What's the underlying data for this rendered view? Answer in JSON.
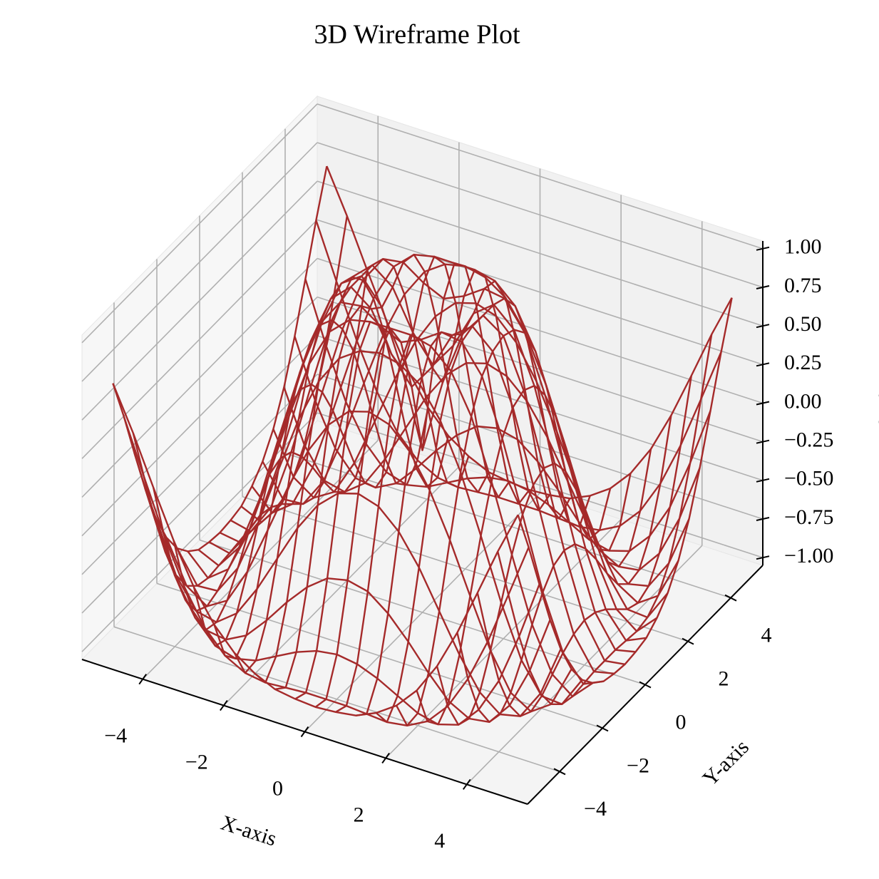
{
  "chart_data": {
    "type": "wireframe",
    "title": "3D Wireframe Plot",
    "xlabel": "X-axis",
    "ylabel": "Y-axis",
    "zlabel": "Z-axis",
    "color": "#a52a2a",
    "grid": true,
    "xlim": [
      -5.5,
      5.5
    ],
    "ylim": [
      -5.5,
      5.5
    ],
    "zlim": [
      -1.05,
      1.05
    ],
    "xticks": [
      {
        "value": -4,
        "label": "−4"
      },
      {
        "value": -2,
        "label": "−2"
      },
      0,
      2,
      4
    ],
    "yticks": [
      {
        "value": -4,
        "label": "−4"
      },
      {
        "value": -2,
        "label": "−2"
      },
      0,
      2,
      4
    ],
    "zticks": [
      {
        "value": -1,
        "label": "−1.00"
      },
      {
        "value": -0.75,
        "label": "−0.75"
      },
      {
        "value": -0.5,
        "label": "−0.50"
      },
      {
        "value": -0.25,
        "label": "−0.25"
      },
      {
        "value": 0,
        "label": "0.00"
      },
      {
        "value": 0.25,
        "label": "0.25"
      },
      {
        "value": 0.5,
        "label": "0.50"
      },
      {
        "value": 0.75,
        "label": "0.75"
      },
      {
        "value": 1,
        "label": "1.00"
      }
    ],
    "x": [
      -5,
      -4.5,
      -4,
      -3.5,
      -3,
      -2.5,
      -2,
      -1.5,
      -1,
      -0.5,
      0,
      0.5,
      1,
      1.5,
      2,
      2.5,
      3,
      3.5,
      4,
      4.5,
      5
    ],
    "y": [
      -5,
      -4.5,
      -4,
      -3.5,
      -3,
      -2.5,
      -2,
      -1.5,
      -1,
      -0.5,
      0,
      0.5,
      1,
      1.5,
      2,
      2.5,
      3,
      3.5,
      4,
      4.5,
      5
    ],
    "z": [
      [
        0.71,
        0.43,
        0.12,
        -0.18,
        -0.44,
        -0.64,
        -0.78,
        -0.87,
        -0.93,
        -0.95,
        -0.96,
        -0.95,
        -0.93,
        -0.87,
        -0.78,
        -0.64,
        -0.44,
        -0.18,
        0.12,
        0.43,
        0.71
      ],
      [
        0.43,
        0.08,
        -0.26,
        -0.55,
        -0.77,
        -0.91,
        -0.98,
        -1,
        -0.99,
        -0.98,
        -0.98,
        -0.98,
        -0.99,
        -1,
        -0.98,
        -0.91,
        -0.77,
        -0.55,
        -0.26,
        0.08,
        0.43
      ],
      [
        0.12,
        -0.26,
        -0.59,
        -0.82,
        -0.96,
        -1,
        -0.97,
        -0.9,
        -0.83,
        -0.78,
        -0.76,
        -0.78,
        -0.83,
        -0.9,
        -0.97,
        -1,
        -0.96,
        -0.82,
        -0.59,
        -0.26,
        0.12
      ],
      [
        -0.18,
        -0.55,
        -0.82,
        -0.97,
        -0.99,
        -0.92,
        -0.78,
        -0.62,
        -0.48,
        -0.38,
        -0.35,
        -0.38,
        -0.48,
        -0.62,
        -0.78,
        -0.92,
        -0.99,
        -0.97,
        -0.82,
        -0.55,
        -0.18
      ],
      [
        -0.44,
        -0.77,
        -0.96,
        -0.99,
        -0.89,
        -0.69,
        -0.45,
        -0.21,
        -0.02,
        0.1,
        0.14,
        0.1,
        -0.02,
        -0.21,
        -0.45,
        -0.69,
        -0.89,
        -0.99,
        -0.96,
        -0.77,
        -0.44
      ],
      [
        -0.64,
        -0.91,
        -1,
        -0.92,
        -0.69,
        -0.38,
        -0.06,
        0.22,
        0.43,
        0.56,
        0.6,
        0.56,
        0.43,
        0.22,
        -0.06,
        -0.38,
        -0.69,
        -0.92,
        -1,
        -0.91,
        -0.64
      ],
      [
        -0.78,
        -0.98,
        -0.97,
        -0.78,
        -0.45,
        -0.06,
        0.31,
        0.6,
        0.79,
        0.88,
        0.91,
        0.88,
        0.79,
        0.6,
        0.31,
        -0.06,
        -0.45,
        -0.78,
        -0.97,
        -0.98,
        -0.78
      ],
      [
        -0.87,
        -1,
        -0.9,
        -0.62,
        -0.21,
        0.22,
        0.6,
        0.85,
        0.97,
        1,
        1,
        1,
        0.97,
        0.85,
        0.6,
        0.22,
        -0.21,
        -0.62,
        -0.9,
        -1,
        -0.87
      ],
      [
        -0.93,
        -0.99,
        -0.83,
        -0.48,
        -0.02,
        0.43,
        0.79,
        0.97,
        0.99,
        0.9,
        0.84,
        0.9,
        0.99,
        0.97,
        0.79,
        0.43,
        -0.02,
        -0.48,
        -0.83,
        -0.99,
        -0.93
      ],
      [
        -0.95,
        -0.98,
        -0.78,
        -0.38,
        0.1,
        0.56,
        0.88,
        1,
        0.9,
        0.65,
        0.48,
        0.65,
        0.9,
        1,
        0.88,
        0.56,
        0.1,
        -0.38,
        -0.78,
        -0.98,
        -0.95
      ],
      [
        -0.96,
        -0.98,
        -0.76,
        -0.35,
        0.14,
        0.6,
        0.91,
        1,
        0.84,
        0.48,
        0,
        0.48,
        0.84,
        1,
        0.91,
        0.6,
        0.14,
        -0.35,
        -0.76,
        -0.98,
        -0.96
      ],
      [
        -0.95,
        -0.98,
        -0.78,
        -0.38,
        0.1,
        0.56,
        0.88,
        1,
        0.9,
        0.65,
        0.48,
        0.65,
        0.9,
        1,
        0.88,
        0.56,
        0.1,
        -0.38,
        -0.78,
        -0.98,
        -0.95
      ],
      [
        -0.93,
        -0.99,
        -0.83,
        -0.48,
        -0.02,
        0.43,
        0.79,
        0.97,
        0.99,
        0.9,
        0.84,
        0.9,
        0.99,
        0.97,
        0.79,
        0.43,
        -0.02,
        -0.48,
        -0.83,
        -0.99,
        -0.93
      ],
      [
        -0.87,
        -1,
        -0.9,
        -0.62,
        -0.21,
        0.22,
        0.6,
        0.85,
        0.97,
        1,
        1,
        1,
        0.97,
        0.85,
        0.6,
        0.22,
        -0.21,
        -0.62,
        -0.9,
        -1,
        -0.87
      ],
      [
        -0.78,
        -0.98,
        -0.97,
        -0.78,
        -0.45,
        -0.06,
        0.31,
        0.6,
        0.79,
        0.88,
        0.91,
        0.88,
        0.79,
        0.6,
        0.31,
        -0.06,
        -0.45,
        -0.78,
        -0.97,
        -0.98,
        -0.78
      ],
      [
        -0.64,
        -0.91,
        -1,
        -0.92,
        -0.69,
        -0.38,
        -0.06,
        0.22,
        0.43,
        0.56,
        0.6,
        0.56,
        0.43,
        0.22,
        -0.06,
        -0.38,
        -0.69,
        -0.92,
        -1,
        -0.91,
        -0.64
      ],
      [
        -0.44,
        -0.77,
        -0.96,
        -0.99,
        -0.89,
        -0.69,
        -0.45,
        -0.21,
        -0.02,
        0.1,
        0.14,
        0.1,
        -0.02,
        -0.21,
        -0.45,
        -0.69,
        -0.89,
        -0.99,
        -0.96,
        -0.77,
        -0.44
      ],
      [
        -0.18,
        -0.55,
        -0.82,
        -0.97,
        -0.99,
        -0.92,
        -0.78,
        -0.62,
        -0.48,
        -0.38,
        -0.35,
        -0.38,
        -0.48,
        -0.62,
        -0.78,
        -0.92,
        -0.99,
        -0.97,
        -0.82,
        -0.55,
        -0.18
      ],
      [
        0.12,
        -0.26,
        -0.59,
        -0.82,
        -0.96,
        -1,
        -0.97,
        -0.9,
        -0.83,
        -0.78,
        -0.76,
        -0.78,
        -0.83,
        -0.9,
        -0.97,
        -1,
        -0.96,
        -0.82,
        -0.59,
        -0.26,
        0.12
      ],
      [
        0.43,
        0.08,
        -0.26,
        -0.55,
        -0.77,
        -0.91,
        -0.98,
        -1,
        -0.99,
        -0.98,
        -0.98,
        -0.98,
        -0.99,
        -1,
        -0.98,
        -0.91,
        -0.77,
        -0.55,
        -0.26,
        0.08,
        0.43
      ],
      [
        0.71,
        0.43,
        0.12,
        -0.18,
        -0.44,
        -0.64,
        -0.78,
        -0.87,
        -0.93,
        -0.95,
        -0.96,
        -0.95,
        -0.93,
        -0.87,
        -0.78,
        -0.64,
        -0.44,
        -0.18,
        0.12,
        0.43,
        0.71
      ]
    ]
  }
}
